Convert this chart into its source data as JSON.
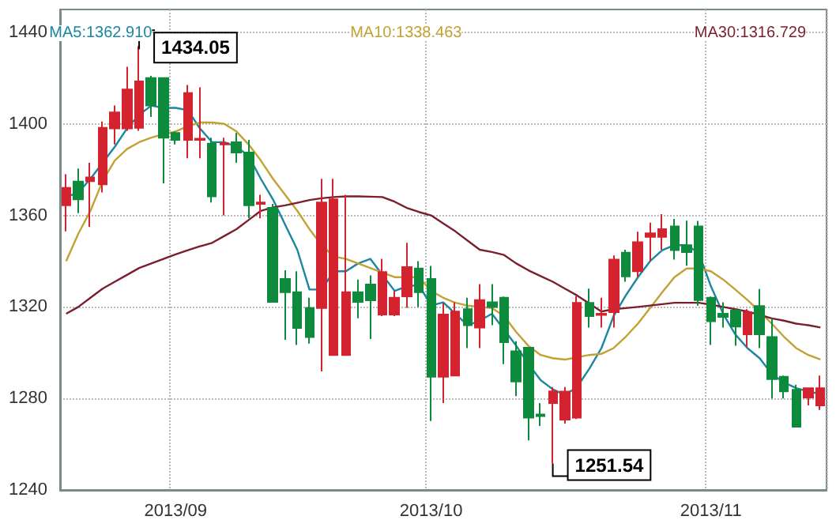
{
  "chart_data": {
    "type": "candlestick",
    "categories": [
      null,
      null,
      null,
      null,
      null,
      null,
      null,
      null,
      null,
      "2013/09",
      null,
      null,
      null,
      null,
      null,
      null,
      null,
      null,
      null,
      null,
      null,
      null,
      null,
      null,
      null,
      null,
      null,
      null,
      null,
      null,
      "2013/10",
      null,
      null,
      null,
      null,
      null,
      null,
      null,
      null,
      null,
      null,
      null,
      null,
      null,
      null,
      null,
      null,
      null,
      null,
      null,
      null,
      null,
      null,
      "2013/11",
      null,
      null,
      null,
      null,
      null,
      null,
      null,
      null,
      null
    ],
    "ohlc": [
      [
        1364.4,
        1378,
        1353,
        1372
      ],
      [
        1374.8,
        1380.5,
        1361,
        1367
      ],
      [
        1375,
        1383,
        1355,
        1376.6
      ],
      [
        1373.6,
        1401,
        1370,
        1398.3
      ],
      [
        1398,
        1408,
        1391,
        1405
      ],
      [
        1398,
        1425,
        1397,
        1415
      ],
      [
        1398.3,
        1434.05,
        1397,
        1418.6
      ],
      [
        1420,
        1421,
        1403,
        1408
      ],
      [
        1420,
        1420,
        1374,
        1394
      ],
      [
        1396,
        1396.7,
        1391,
        1393
      ],
      [
        1393,
        1417,
        1385,
        1413.5
      ],
      [
        1393,
        1416,
        1385,
        1393.5
      ],
      [
        1391.4,
        1394,
        1365.6,
        1368.3
      ],
      [
        1391,
        1394,
        1360,
        1391.5
      ],
      [
        1392,
        1396,
        1383,
        1387.5
      ],
      [
        1387.5,
        1393,
        1358.7,
        1364.4
      ],
      [
        1365,
        1369,
        1358.7,
        1365.6
      ],
      [
        1363.3,
        1365,
        1322,
        1322.2
      ],
      [
        1332.2,
        1336,
        1305.6,
        1326.4
      ],
      [
        1326.4,
        1335.6,
        1303.4,
        1310.8
      ],
      [
        1319.5,
        1324,
        1304,
        1306.8
      ],
      [
        1319.5,
        1376,
        1291.8,
        1365.6
      ],
      [
        1299,
        1376,
        1299,
        1367
      ],
      [
        1299,
        1369,
        1299,
        1326.4
      ],
      [
        1326.4,
        1332,
        1315,
        1322.2
      ],
      [
        1329.8,
        1333.8,
        1306,
        1322.9
      ],
      [
        1316.7,
        1341,
        1316,
        1335.2
      ],
      [
        1316.7,
        1327,
        1316,
        1324
      ],
      [
        1324.6,
        1348,
        1319.6,
        1337.4
      ],
      [
        1336.8,
        1340,
        1320,
        1326.4
      ],
      [
        1332.2,
        1337.9,
        1270.1,
        1289.5
      ],
      [
        1289.5,
        1321.7,
        1278,
        1316.7
      ],
      [
        1290,
        1322,
        1290,
        1318
      ],
      [
        1319,
        1324,
        1302,
        1312
      ],
      [
        1311,
        1330,
        1302,
        1323
      ],
      [
        1322,
        1330,
        1312,
        1320
      ],
      [
        1324,
        1324.5,
        1295,
        1304.6
      ],
      [
        1300.6,
        1305,
        1281,
        1287.4
      ],
      [
        1302.2,
        1302.5,
        1261.7,
        1271.6
      ],
      [
        1273,
        1278,
        1268,
        1272.3
      ],
      [
        1278,
        1285,
        1251.54,
        1283.1
      ],
      [
        1270.7,
        1285,
        1269,
        1283
      ],
      [
        1271.6,
        1324.7,
        1271,
        1321.8
      ],
      [
        1321.8,
        1328,
        1311,
        1316
      ],
      [
        1316.5,
        1324,
        1311,
        1317
      ],
      [
        1317.7,
        1342.5,
        1311,
        1340.7
      ],
      [
        1343.7,
        1345,
        1331,
        1333.3
      ],
      [
        1335.6,
        1352.9,
        1333,
        1348.3
      ],
      [
        1350.6,
        1356.8,
        1340,
        1352.2
      ],
      [
        1350.6,
        1360.5,
        1345,
        1354
      ],
      [
        1355.2,
        1358.5,
        1340.7,
        1344.8
      ],
      [
        1347,
        1357.7,
        1338,
        1344
      ],
      [
        1355.2,
        1357.6,
        1320.6,
        1323
      ],
      [
        1324,
        1324.5,
        1303.4,
        1313.7
      ],
      [
        1317,
        1322,
        1311,
        1315.6
      ],
      [
        1318.4,
        1319,
        1303,
        1311.4
      ],
      [
        1308,
        1319,
        1302.4,
        1317.7
      ],
      [
        1320.4,
        1327.8,
        1302,
        1308
      ],
      [
        1306.8,
        1314.9,
        1280,
        1288.4
      ],
      [
        1289.5,
        1290,
        1280,
        1283.1
      ],
      [
        1283.8,
        1286,
        1267.6,
        1267.6
      ],
      [
        1280.4,
        1284.5,
        1277,
        1284.5
      ],
      [
        1277,
        1290,
        1275,
        1284.5
      ]
    ],
    "colors": [
      "#d3232e",
      "#0e8a3c",
      "#d3232e",
      "#d3232e",
      "#d3232e",
      "#d3232e",
      "#d3232e",
      "#0e8a3c",
      "#0e8a3c",
      "#0e8a3c",
      "#d3232e",
      "#d3232e",
      "#0e8a3c",
      "#d3232e",
      "#0e8a3c",
      "#0e8a3c",
      "#d3232e",
      "#0e8a3c",
      "#0e8a3c",
      "#0e8a3c",
      "#0e8a3c",
      "#d3232e",
      "#d3232e",
      "#d3232e",
      "#0e8a3c",
      "#0e8a3c",
      "#d3232e",
      "#d3232e",
      "#d3232e",
      "#0e8a3c",
      "#0e8a3c",
      "#d3232e",
      "#d3232e",
      "#0e8a3c",
      "#d3232e",
      "#0e8a3c",
      "#0e8a3c",
      "#0e8a3c",
      "#0e8a3c",
      "#0e8a3c",
      "#d3232e",
      "#d3232e",
      "#d3232e",
      "#0e8a3c",
      "#d3232e",
      "#d3232e",
      "#0e8a3c",
      "#d3232e",
      "#d3232e",
      "#d3232e",
      "#0e8a3c",
      "#0e8a3c",
      "#0e8a3c",
      "#0e8a3c",
      "#0e8a3c",
      "#0e8a3c",
      "#d3232e",
      "#0e8a3c",
      "#0e8a3c",
      "#0e8a3c",
      "#0e8a3c",
      "#d3232e",
      "#d3232e"
    ],
    "series": [
      {
        "type": "line",
        "name": "MA5:1362.910",
        "color": "#1b86a0",
        "values": [
          1368,
          1370,
          1376,
          1383,
          1390,
          1398,
          1404,
          1408,
          1407,
          1407,
          1406,
          1398,
          1392,
          1392,
          1390,
          1386,
          1376,
          1367,
          1356,
          1345,
          1327.6,
          1327.6,
          1335.6,
          1335.6,
          1339,
          1341,
          1334,
          1327,
          1329,
          1329.6,
          1320.6,
          1322,
          1317,
          1312,
          1314,
          1317,
          1310,
          1303,
          1295,
          1288,
          1284,
          1281.5,
          1285,
          1293,
          1302,
          1316,
          1325,
          1333,
          1340,
          1344.8,
          1347,
          1347,
          1343.6,
          1329,
          1317,
          1308,
          1302,
          1297.6,
          1290.7,
          1287,
          1284.5,
          1283,
          1282
        ]
      },
      {
        "type": "line",
        "name": "MA10:1338.463",
        "color": "#c2a232",
        "values": [
          1340,
          1352,
          1362,
          1375,
          1384,
          1389,
          1392,
          1394,
          1395.5,
          1396.7,
          1399,
          1400.6,
          1400.6,
          1400,
          1396.7,
          1391,
          1384,
          1376,
          1369,
          1362,
          1354,
          1347,
          1342,
          1341,
          1339,
          1337,
          1335,
          1333,
          1333,
          1333,
          1327,
          1324,
          1321.8,
          1320.6,
          1320,
          1319.5,
          1316,
          1309,
          1303,
          1299,
          1297.6,
          1297,
          1298,
          1299,
          1299.5,
          1302,
          1307,
          1312.7,
          1319.5,
          1326.4,
          1333,
          1336.8,
          1336.8,
          1335.6,
          1332,
          1327.6,
          1323,
          1318,
          1312.7,
          1307,
          1302,
          1299,
          1297
        ]
      },
      {
        "type": "line",
        "name": "MA30:1316.729",
        "color": "#7a1f2e",
        "values": [
          1317,
          1320,
          1324,
          1328,
          1331,
          1334,
          1337,
          1339,
          1341,
          1343,
          1344.8,
          1346.5,
          1348,
          1351,
          1354,
          1358,
          1362,
          1363.5,
          1364.4,
          1365.5,
          1366.7,
          1367.5,
          1368,
          1368.3,
          1368.3,
          1368.2,
          1368,
          1366,
          1363.3,
          1361.5,
          1360,
          1356.5,
          1353,
          1349,
          1345,
          1344,
          1342.7,
          1339,
          1336,
          1333.5,
          1331,
          1328,
          1325,
          1321.5,
          1318,
          1319,
          1319.5,
          1320,
          1320.6,
          1321.2,
          1321.8,
          1321.8,
          1321.8,
          1321,
          1320,
          1319,
          1318,
          1316.5,
          1315,
          1314,
          1312.7,
          1312,
          1311
        ]
      }
    ],
    "ylim": [
      1240,
      1450
    ],
    "yticks": [
      1240,
      1280,
      1320,
      1360,
      1400,
      1440
    ],
    "annotations": [
      "1434.05",
      "1251.54"
    ],
    "grid": true,
    "legend": "top",
    "marker": "none"
  }
}
